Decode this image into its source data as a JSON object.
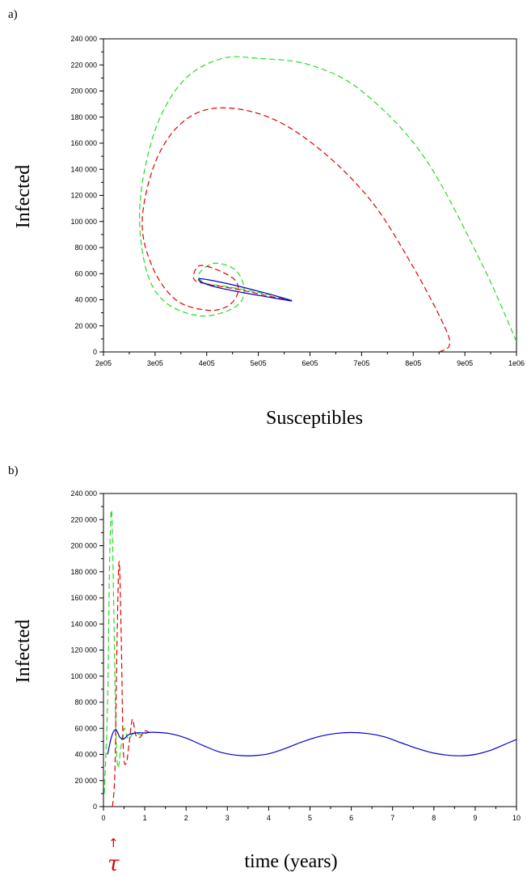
{
  "chart_data": [
    {
      "type": "line",
      "panel_label": "a)",
      "xlabel": "Susceptibles",
      "ylabel": "Infected",
      "xlim": [
        200000,
        1000000
      ],
      "ylim": [
        0,
        240000
      ],
      "x_tick_labels": [
        "2e05",
        "3e05",
        "4e05",
        "5e05",
        "6e05",
        "7e05",
        "8e05",
        "9e05",
        "1e06"
      ],
      "x_ticks": [
        200000,
        300000,
        400000,
        500000,
        600000,
        700000,
        800000,
        900000,
        1000000
      ],
      "y_tick_labels": [
        "0",
        "20 000",
        "40 000",
        "60 000",
        "80 000",
        "100 000",
        "120 000",
        "140 000",
        "160 000",
        "180 000",
        "200 000",
        "220 000",
        "240 000"
      ],
      "y_ticks": [
        0,
        20000,
        40000,
        60000,
        80000,
        100000,
        120000,
        140000,
        160000,
        180000,
        200000,
        220000,
        240000
      ],
      "series": [
        {
          "color": "#22dd22",
          "style": "dashed",
          "points": [
            [
              1000000,
              8000
            ],
            [
              930000,
              70000
            ],
            [
              820000,
              150000
            ],
            [
              700000,
              200000
            ],
            [
              600000,
              220000
            ],
            [
              500000,
              225000
            ],
            [
              430000,
              225000
            ],
            [
              360000,
              210000
            ],
            [
              310000,
              180000
            ],
            [
              280000,
              140000
            ],
            [
              270000,
              100000
            ],
            [
              285000,
              60000
            ],
            [
              320000,
              38000
            ],
            [
              380000,
              28000
            ],
            [
              430000,
              30000
            ],
            [
              465000,
              38000
            ],
            [
              472000,
              50000
            ],
            [
              455000,
              63000
            ],
            [
              415000,
              68000
            ],
            [
              385000,
              60000
            ],
            [
              395000,
              53000
            ],
            [
              440000,
              50000
            ],
            [
              520000,
              44000
            ],
            [
              565000,
              39500
            ]
          ]
        },
        {
          "color": "#e00000",
          "style": "dashed",
          "points": [
            [
              850000,
              0
            ],
            [
              870000,
              5000
            ],
            [
              860000,
              20000
            ],
            [
              800000,
              65000
            ],
            [
              720000,
              115000
            ],
            [
              620000,
              155000
            ],
            [
              520000,
              180000
            ],
            [
              420000,
              187000
            ],
            [
              350000,
              175000
            ],
            [
              300000,
              145000
            ],
            [
              275000,
              100000
            ],
            [
              295000,
              65000
            ],
            [
              340000,
              40000
            ],
            [
              400000,
              32000
            ],
            [
              440000,
              35000
            ],
            [
              460000,
              45000
            ],
            [
              455000,
              55000
            ],
            [
              420000,
              63000
            ],
            [
              385000,
              66000
            ],
            [
              375000,
              56000
            ],
            [
              400000,
              52000
            ],
            [
              460000,
              48000
            ],
            [
              530000,
              42000
            ],
            [
              565000,
              39500
            ]
          ]
        },
        {
          "color": "#0000cc",
          "style": "solid",
          "points": [
            [
              565000,
              39000
            ],
            [
              520000,
              42000
            ],
            [
              470000,
              45500
            ],
            [
              420000,
              49500
            ],
            [
              390000,
              53500
            ],
            [
              385000,
              56000
            ],
            [
              400000,
              55500
            ],
            [
              450000,
              51500
            ],
            [
              510000,
              45500
            ],
            [
              555000,
              40500
            ],
            [
              565000,
              39000
            ]
          ]
        }
      ]
    },
    {
      "type": "line",
      "panel_label": "b)",
      "xlabel": "time (years)",
      "ylabel": "Infected",
      "annotation": "τ",
      "annotation_arrow": "↑",
      "annotation_x": 1.2,
      "xlim": [
        0,
        10
      ],
      "ylim": [
        0,
        240000
      ],
      "x_tick_labels": [
        "0",
        "1",
        "2",
        "3",
        "4",
        "5",
        "6",
        "7",
        "8",
        "9",
        "10"
      ],
      "x_ticks": [
        0,
        1,
        2,
        3,
        4,
        5,
        6,
        7,
        8,
        9,
        10
      ],
      "y_tick_labels": [
        "0",
        "20 000",
        "40 000",
        "60 000",
        "80 000",
        "100 000",
        "120 000",
        "140 000",
        "160 000",
        "180 000",
        "200 000",
        "220 000",
        "240 000"
      ],
      "y_ticks": [
        0,
        20000,
        40000,
        60000,
        80000,
        100000,
        120000,
        140000,
        160000,
        180000,
        200000,
        220000,
        240000
      ],
      "series": [
        {
          "color": "#22dd22",
          "style": "dashed",
          "points": [
            [
              0.02,
              10000
            ],
            [
              0.1,
              80000
            ],
            [
              0.15,
              190000
            ],
            [
              0.2,
              226000
            ],
            [
              0.25,
              150000
            ],
            [
              0.3,
              60000
            ],
            [
              0.35,
              30000
            ],
            [
              0.42,
              45000
            ],
            [
              0.5,
              60000
            ],
            [
              0.6,
              52000
            ],
            [
              0.75,
              57000
            ],
            [
              0.9,
              55000
            ],
            [
              1.1,
              57000
            ]
          ]
        },
        {
          "color": "#e00000",
          "style": "dashed",
          "points": [
            [
              0.22,
              0
            ],
            [
              0.28,
              30000
            ],
            [
              0.33,
              130000
            ],
            [
              0.38,
              188000
            ],
            [
              0.43,
              130000
            ],
            [
              0.48,
              45000
            ],
            [
              0.55,
              33000
            ],
            [
              0.62,
              48000
            ],
            [
              0.7,
              67000
            ],
            [
              0.78,
              55000
            ],
            [
              0.88,
              53000
            ],
            [
              1.0,
              58000
            ],
            [
              1.1,
              57000
            ]
          ]
        },
        {
          "color": "#0000cc",
          "style": "solid",
          "points": [
            [
              0.1,
              40000
            ],
            [
              0.2,
              54000
            ],
            [
              0.3,
              59000
            ],
            [
              0.4,
              53000
            ],
            [
              0.5,
              52000
            ],
            [
              0.6,
              55000
            ],
            [
              0.8,
              56500
            ],
            [
              1.0,
              56500
            ],
            [
              1.2,
              57000
            ],
            [
              1.6,
              56000
            ],
            [
              2.0,
              52500
            ],
            [
              2.4,
              47000
            ],
            [
              2.8,
              42000
            ],
            [
              3.2,
              39500
            ],
            [
              3.6,
              39000
            ],
            [
              4.0,
              40500
            ],
            [
              4.4,
              44500
            ],
            [
              4.8,
              49500
            ],
            [
              5.2,
              53500
            ],
            [
              5.6,
              56000
            ],
            [
              6.0,
              56800
            ],
            [
              6.4,
              56000
            ],
            [
              6.8,
              53500
            ],
            [
              7.2,
              49000
            ],
            [
              7.6,
              44500
            ],
            [
              8.0,
              41000
            ],
            [
              8.4,
              39200
            ],
            [
              8.7,
              39000
            ],
            [
              9.0,
              40000
            ],
            [
              9.4,
              43500
            ],
            [
              9.7,
              47500
            ],
            [
              10.0,
              51500
            ]
          ]
        }
      ]
    }
  ]
}
